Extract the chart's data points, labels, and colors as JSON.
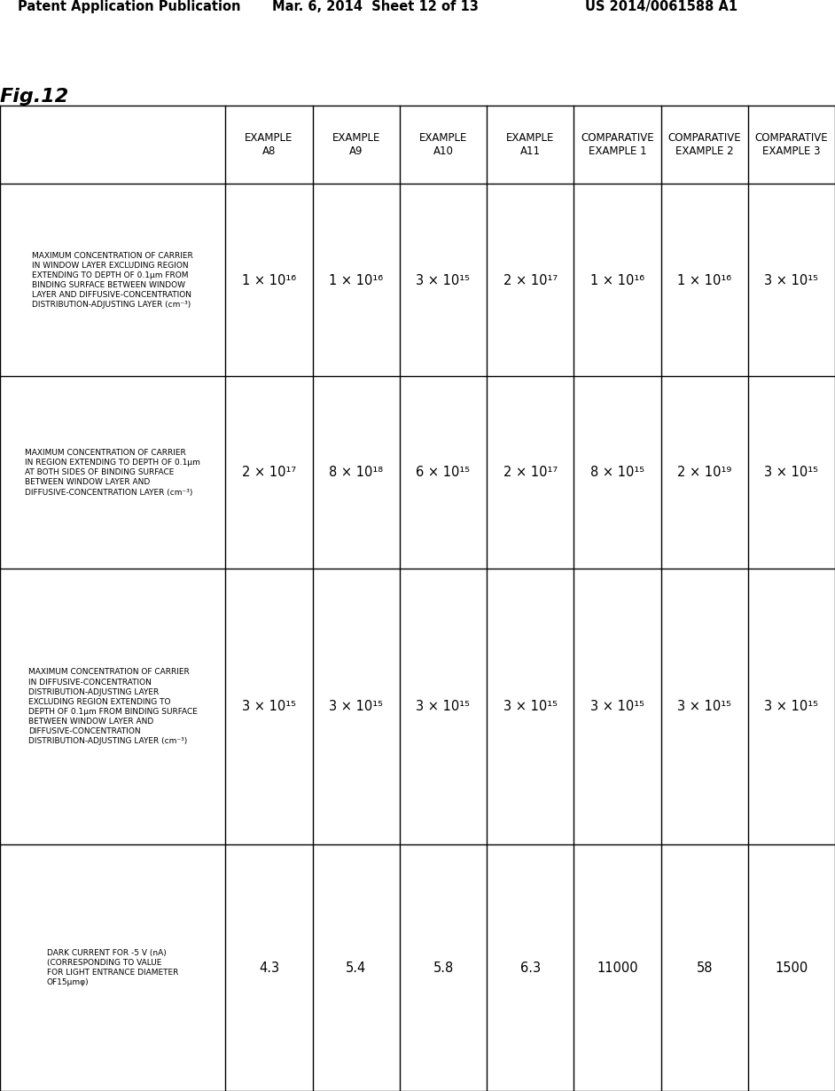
{
  "header_line1": "Patent Application Publication",
  "header_middle": "Mar. 6, 2014  Sheet 12 of 13",
  "header_right": "US 2014/0061588 A1",
  "fig_label": "Fig.12",
  "col_headers_line1": [
    "EXAMPLE",
    "EXAMPLE",
    "EXAMPLE",
    "EXAMPLE",
    "EXAMPLE",
    "COMPARATIVE",
    "COMPARATIVE",
    "COMPARATIVE"
  ],
  "col_headers_line2": [
    "",
    "A8",
    "A9",
    "A10",
    "A11",
    "EXAMPLE 1",
    "EXAMPLE 2",
    "EXAMPLE 3"
  ],
  "row_labels": [
    "MAXIMUM CONCENTRATION OF CARRIER\nIN WINDOW LAYER EXCLUDING REGION\nEXTENDING TO DEPTH OF 0.1μm FROM\nBINDING SURFACE BETWEEN WINDOW\nLAYER AND DIFFUSIVE-CONCENTRATION\nDISTRIBUTION-ADJUSTING LAYER (cm⁻³)",
    "MAXIMUM CONCENTRATION OF CARRIER\nIN REGION EXTENDING TO DEPTH OF 0.1μm\nAT BOTH SIDES OF BINDING SURFACE\nBETWEEN WINDOW LAYER AND\nDIFFUSIVE-CONCENTRATION LAYER (cm⁻³)",
    "MAXIMUM CONCENTRATION OF CARRIER\nIN DIFFUSIVE-CONCENTRATION\nDISTRIBUTION-ADJUSTING LAYER\nEXCLUDING REGION EXTENDING TO\nDEPTH OF 0.1μm FROM BINDING SURFACE\nBETWEEN WINDOW LAYER AND\nDIFFUSIVE-CONCENTRATION\nDISTRIBUTION-ADJUSTING LAYER (cm⁻³)",
    "DARK CURRENT FOR -5 V (nA)\n(CORRESPONDING TO VALUE\nFOR LIGHT ENTRANCE DIAMETER\nOF15μmφ)"
  ],
  "data": [
    [
      "1 × 10¹⁶",
      "1 × 10¹⁶",
      "3 × 10¹⁵",
      "2 × 10¹⁷",
      "1 × 10¹⁶",
      "1 × 10¹⁶",
      "3 × 10¹⁵"
    ],
    [
      "2 × 10¹⁷",
      "8 × 10¹⁸",
      "6 × 10¹⁵",
      "2 × 10¹⁷",
      "8 × 10¹⁵",
      "2 × 10¹⁹",
      "3 × 10¹⁵"
    ],
    [
      "3 × 10¹⁵",
      "3 × 10¹⁵",
      "3 × 10¹⁵",
      "3 × 10¹⁵",
      "3 × 10¹⁵",
      "3 × 10¹⁵",
      "3 × 10¹⁵"
    ],
    [
      "4.3",
      "5.4",
      "5.8",
      "6.3",
      "11000",
      "58",
      "1500"
    ]
  ],
  "background_color": "#ffffff",
  "line_color": "#000000",
  "col_header_fontsize": 8.5,
  "row_label_fontsize": 6.5,
  "data_fontsize": 10.5
}
